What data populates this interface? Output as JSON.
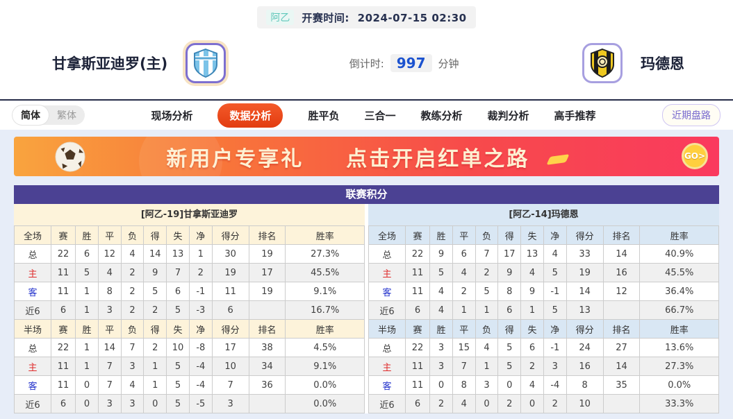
{
  "header": {
    "league_tag": "阿乙",
    "kickoff_label": "开赛时间:",
    "kickoff_time": "2024-07-15 02:30",
    "home_team_name": "甘拿斯亚迪罗(主)",
    "away_team_name": "玛德恩",
    "countdown_label": "倒计时:",
    "countdown_value": "997",
    "countdown_unit": "分钟"
  },
  "nav": {
    "lang_simplified": "简体",
    "lang_traditional": "繁体",
    "items": [
      "现场分析",
      "数据分析",
      "胜平负",
      "三合一",
      "教练分析",
      "裁判分析",
      "高手推荐"
    ],
    "active_item": "数据分析",
    "recent_button": "近期盘路"
  },
  "banner": {
    "text_left": "新用户专享礼",
    "text_right": "点击开启红单之路",
    "go_label": "GO>"
  },
  "colors": {
    "title_purple": "#4b4193",
    "home_header_cream": "#fdf3da",
    "away_header_blue": "#d9e7f4",
    "active_tab_red": "#e8431c",
    "banner_gradient_start": "#f9a43e",
    "banner_gradient_end": "#fa3a5e",
    "countdown_blue": "#1b52cf",
    "league_tag_teal": "#5ec7ba"
  },
  "league_table": {
    "title": "联赛积分",
    "home": {
      "subtitle": "[阿乙-19]甘拿斯亚迪罗",
      "full_header": [
        "全场",
        "赛",
        "胜",
        "平",
        "负",
        "得",
        "失",
        "净",
        "得分",
        "排名",
        "胜率"
      ],
      "full_rows": [
        [
          "总",
          "22",
          "6",
          "12",
          "4",
          "14",
          "13",
          "1",
          "30",
          "19",
          "27.3%"
        ],
        [
          "主",
          "11",
          "5",
          "4",
          "2",
          "9",
          "7",
          "2",
          "19",
          "17",
          "45.5%"
        ],
        [
          "客",
          "11",
          "1",
          "8",
          "2",
          "5",
          "6",
          "-1",
          "11",
          "19",
          "9.1%"
        ],
        [
          "近6",
          "6",
          "1",
          "3",
          "2",
          "2",
          "5",
          "-3",
          "6",
          "",
          "16.7%"
        ]
      ],
      "half_header": [
        "半场",
        "赛",
        "胜",
        "平",
        "负",
        "得",
        "失",
        "净",
        "得分",
        "排名",
        "胜率"
      ],
      "half_rows": [
        [
          "总",
          "22",
          "1",
          "14",
          "7",
          "2",
          "10",
          "-8",
          "17",
          "38",
          "4.5%"
        ],
        [
          "主",
          "11",
          "1",
          "7",
          "3",
          "1",
          "5",
          "-4",
          "10",
          "34",
          "9.1%"
        ],
        [
          "客",
          "11",
          "0",
          "7",
          "4",
          "1",
          "5",
          "-4",
          "7",
          "36",
          "0.0%"
        ],
        [
          "近6",
          "6",
          "0",
          "3",
          "3",
          "0",
          "5",
          "-5",
          "3",
          "",
          "0.0%"
        ]
      ]
    },
    "away": {
      "subtitle": "[阿乙-14]玛德恩",
      "full_header": [
        "全场",
        "赛",
        "胜",
        "平",
        "负",
        "得",
        "失",
        "净",
        "得分",
        "排名",
        "胜率"
      ],
      "full_rows": [
        [
          "总",
          "22",
          "9",
          "6",
          "7",
          "17",
          "13",
          "4",
          "33",
          "14",
          "40.9%"
        ],
        [
          "主",
          "11",
          "5",
          "4",
          "2",
          "9",
          "4",
          "5",
          "19",
          "16",
          "45.5%"
        ],
        [
          "客",
          "11",
          "4",
          "2",
          "5",
          "8",
          "9",
          "-1",
          "14",
          "12",
          "36.4%"
        ],
        [
          "近6",
          "6",
          "4",
          "1",
          "1",
          "6",
          "1",
          "5",
          "13",
          "",
          "66.7%"
        ]
      ],
      "half_header": [
        "半场",
        "赛",
        "胜",
        "平",
        "负",
        "得",
        "失",
        "净",
        "得分",
        "排名",
        "胜率"
      ],
      "half_rows": [
        [
          "总",
          "22",
          "3",
          "15",
          "4",
          "5",
          "6",
          "-1",
          "24",
          "27",
          "13.6%"
        ],
        [
          "主",
          "11",
          "3",
          "7",
          "1",
          "5",
          "2",
          "3",
          "16",
          "14",
          "27.3%"
        ],
        [
          "客",
          "11",
          "0",
          "8",
          "3",
          "0",
          "4",
          "-4",
          "8",
          "35",
          "0.0%"
        ],
        [
          "近6",
          "6",
          "2",
          "4",
          "0",
          "2",
          "0",
          "2",
          "10",
          "",
          "33.3%"
        ]
      ]
    }
  }
}
